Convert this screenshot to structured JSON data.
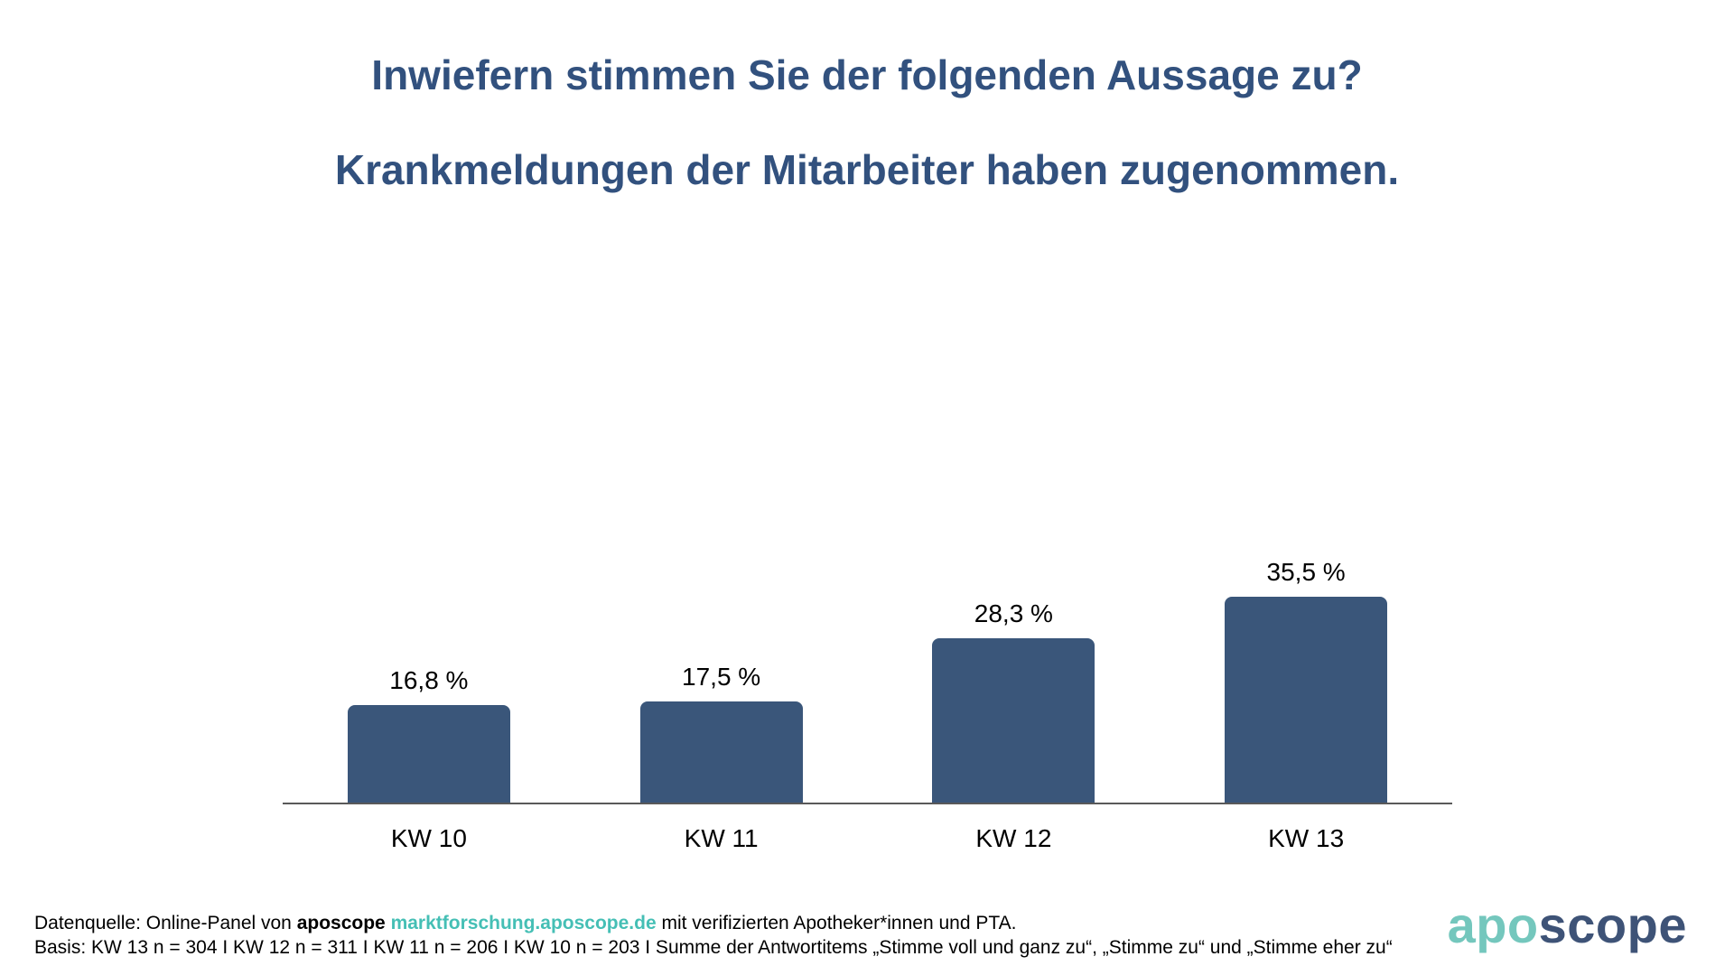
{
  "title": {
    "line1": "Inwiefern stimmen Sie der folgenden Aussage zu?",
    "line2": "Krankmeldungen der Mitarbeiter haben zugenommen."
  },
  "chart_data": {
    "type": "bar",
    "categories": [
      "KW 10",
      "KW 11",
      "KW 12",
      "KW 13"
    ],
    "values": [
      16.8,
      17.5,
      28.3,
      35.5
    ],
    "value_labels": [
      "16,8 %",
      "17,5 %",
      "28,3 %",
      "35,5 %"
    ],
    "title": "Krankmeldungen der Mitarbeiter haben zugenommen.",
    "xlabel": "",
    "ylabel": "",
    "ylim": [
      0,
      45
    ],
    "grid": false,
    "legend": false,
    "bar_color": "#3a567a",
    "axis_color": "#595959"
  },
  "footer": {
    "line1_prefix": "Datenquelle: Online-Panel von ",
    "line1_bold": "aposcope",
    "line1_link": "marktforschung.aposcope.de",
    "line1_suffix": " mit verifizierten Apotheker*innen und PTA.",
    "line2": "Basis: KW 13 n = 304 I KW 12 n = 311 I KW 11 n = 206 I KW 10 n = 203 I Summe der Antwortitems „Stimme voll und ganz zu“, „Stimme zu“ und „Stimme eher zu“"
  },
  "logo": {
    "part1": "apo",
    "part2": "scope"
  },
  "colors": {
    "title": "#32517e",
    "bar": "#3a567a",
    "axis": "#595959",
    "teal": "#45bfb5",
    "logo_teal": "#74c7bd",
    "logo_blue": "#3e5377"
  }
}
